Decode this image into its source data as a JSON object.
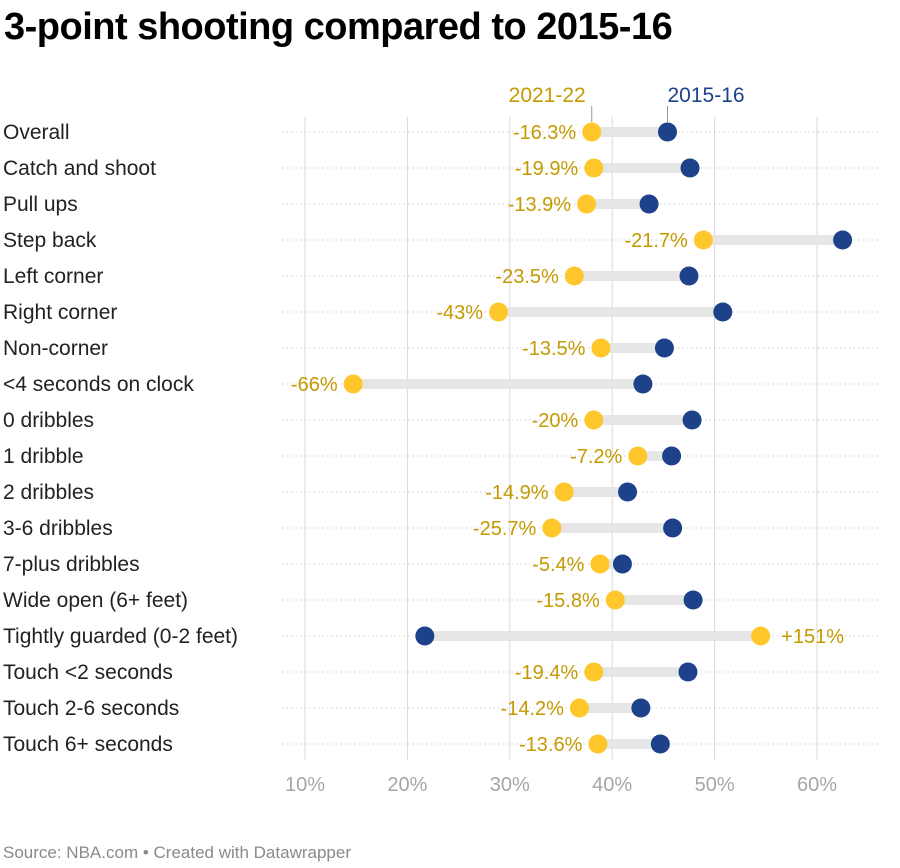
{
  "title": "3-point shooting compared to 2015-16",
  "footer": "Source: NBA.com • Created with Datawrapper",
  "colors": {
    "series_2021": "#ffc72c",
    "series_2016": "#1d428a",
    "label_2021": "#c49a00",
    "label_2016": "#1d428a",
    "text": "#222222",
    "axis_text": "#a6a6a6",
    "grid": "#d9d9d9",
    "connector": "#e6e6e6"
  },
  "chart_data": {
    "type": "dot-range",
    "title": "3-point shooting compared to 2015-16",
    "x_axis": {
      "ticks": [
        "10%",
        "20%",
        "30%",
        "40%",
        "50%",
        "60%"
      ],
      "range": [
        8,
        64
      ],
      "unit": "%",
      "grid": true
    },
    "legend": [
      {
        "name": "2021-22",
        "color": "#ffc72c"
      },
      {
        "name": "2015-16",
        "color": "#1d428a"
      }
    ],
    "categories": [
      "Overall",
      "Catch and shoot",
      "Pull ups",
      "Step back",
      "Left corner",
      "Right corner",
      "Non-corner",
      "<4 seconds on clock",
      "0 dribbles",
      "1 dribble",
      "2 dribbles",
      "3-6 dribbles",
      "7-plus dribbles",
      "Wide open (6+ feet)",
      "Tightly guarded (0-2 feet)",
      "Touch <2 seconds",
      "Touch 2-6 seconds",
      "Touch 6+ seconds"
    ],
    "series": [
      {
        "name": "2021-22",
        "values": [
          38.0,
          38.2,
          37.5,
          48.9,
          36.3,
          28.9,
          38.9,
          14.7,
          38.2,
          42.5,
          35.3,
          34.1,
          38.8,
          40.3,
          54.5,
          38.2,
          36.8,
          38.6
        ]
      },
      {
        "name": "2015-16",
        "values": [
          45.4,
          47.6,
          43.6,
          62.5,
          47.5,
          50.8,
          45.1,
          43.0,
          47.8,
          45.8,
          41.5,
          45.9,
          41.0,
          47.9,
          21.7,
          47.4,
          42.8,
          44.7
        ]
      }
    ],
    "labels": [
      "-16.3%",
      "-19.9%",
      "-13.9%",
      "-21.7%",
      "-23.5%",
      "-43%",
      "-13.5%",
      "-66%",
      "-20%",
      "-7.2%",
      "-14.9%",
      "-25.7%",
      "-5.4%",
      "-15.8%",
      "+151%",
      "-19.4%",
      "-14.2%",
      "-13.6%"
    ]
  }
}
